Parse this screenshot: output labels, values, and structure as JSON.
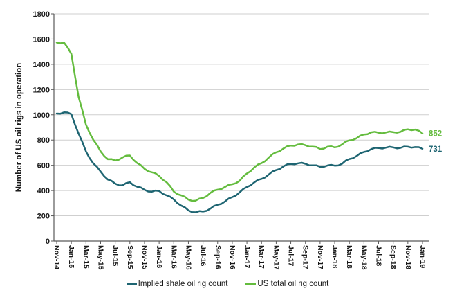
{
  "chart_data": {
    "type": "line",
    "title": "",
    "ylabel": "Number of US oil rigs in operation",
    "xlabel": "",
    "ylim": [
      0,
      1800
    ],
    "yticks": [
      0,
      200,
      400,
      600,
      800,
      1000,
      1200,
      1400,
      1600,
      1800
    ],
    "grid": "horizontal",
    "gridline_color": "#cfcfcf",
    "axis_color": "#595959",
    "legend_position": "bottom",
    "x": [
      "Nov-14",
      "Dec-14",
      "Jan-15",
      "Feb-15",
      "Mar-15",
      "Apr-15",
      "May-15",
      "Jun-15",
      "Jul-15",
      "Aug-15",
      "Sep-15",
      "Oct-15",
      "Nov-15",
      "Dec-15",
      "Jan-16",
      "Feb-16",
      "Mar-16",
      "Apr-16",
      "May-16",
      "Jun-16",
      "Jul-16",
      "Aug-16",
      "Sep-16",
      "Oct-16",
      "Nov-16",
      "Dec-16",
      "Jan-17",
      "Feb-17",
      "Mar-17",
      "Apr-17",
      "May-17",
      "Jun-17",
      "Jul-17",
      "Aug-17",
      "Sep-17",
      "Oct-17",
      "Nov-17",
      "Dec-17",
      "Jan-18",
      "Feb-18",
      "Mar-18",
      "Apr-18",
      "May-18",
      "Jun-18",
      "Jul-18",
      "Aug-18",
      "Sep-18",
      "Oct-18",
      "Nov-18",
      "Dec-18",
      "Jan-19"
    ],
    "xtick_labels": [
      "Nov-14",
      "Jan-15",
      "Mar-15",
      "May-15",
      "Jul-15",
      "Sep-15",
      "Nov-15",
      "Jan-16",
      "Mar-16",
      "May-16",
      "Jul-16",
      "Sep-16",
      "Nov-16",
      "Jan-17",
      "Mar-17",
      "May-17",
      "Jul-17",
      "Sep-17",
      "Nov-17",
      "Jan-18",
      "Mar-18",
      "May-18",
      "Jul-18",
      "Sep-18",
      "Nov-18",
      "Jan-19"
    ],
    "series": [
      {
        "name": "Implied shale oil rig count",
        "color": "#1e6572",
        "end_label": "731",
        "values": [
          1010,
          1019,
          1005,
          850,
          710,
          615,
          550,
          487,
          455,
          441,
          466,
          430,
          406,
          391,
          397,
          362,
          330,
          281,
          243,
          228,
          234,
          257,
          287,
          313,
          348,
          385,
          428,
          465,
          492,
          528,
          562,
          592,
          611,
          616,
          612,
          600,
          588,
          598,
          597,
          612,
          650,
          674,
          706,
          728,
          737,
          740,
          742,
          738,
          747,
          744,
          731
        ]
      },
      {
        "name": "US total oil rig count",
        "color": "#64bc3e",
        "end_label": "852",
        "values": [
          1573,
          1572,
          1482,
          1140,
          922,
          802,
          710,
          648,
          638,
          662,
          678,
          618,
          572,
          545,
          516,
          467,
          392,
          362,
          328,
          320,
          341,
          381,
          407,
          428,
          450,
          477,
          535,
          583,
          617,
          662,
          703,
          733,
          756,
          765,
          759,
          748,
          729,
          747,
          742,
          765,
          798,
          815,
          844,
          861,
          858,
          860,
          862,
          865,
          885,
          883,
          852
        ]
      }
    ]
  }
}
